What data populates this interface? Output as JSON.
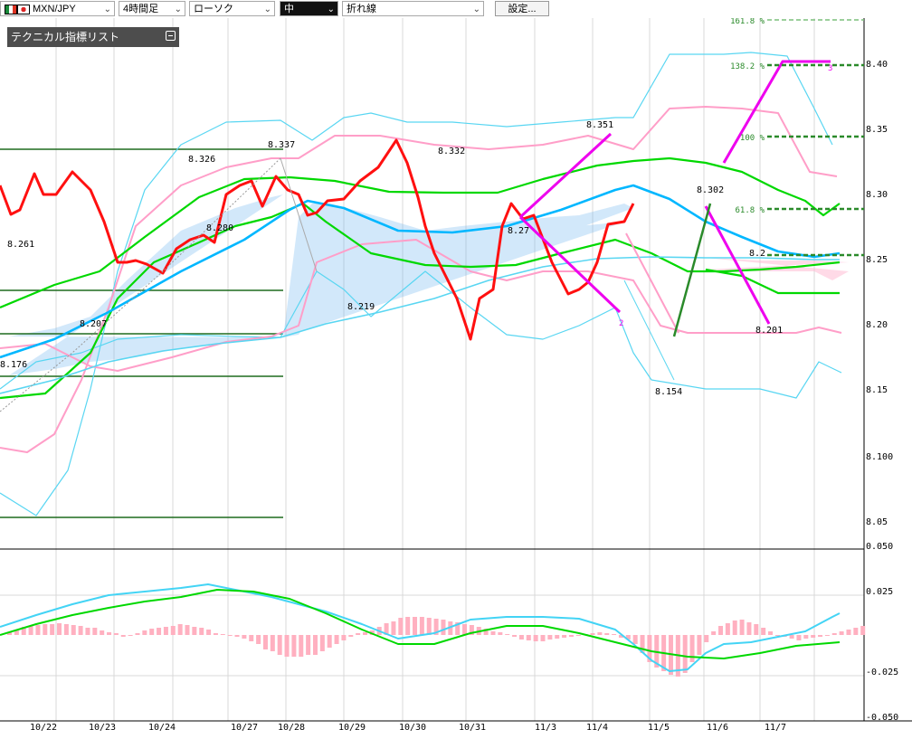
{
  "toolbar": {
    "symbol": "MXN/JPY",
    "period": "4時間足",
    "chart_type": "ローソク",
    "size": "中",
    "line_tool": "折れ線",
    "settings": "設定..."
  },
  "indicator_list": {
    "label": "テクニカル指標リスト"
  },
  "colors": {
    "bullish": "#e53935",
    "bearish": "#1a1aff",
    "ma_short": "#00d800",
    "ma_long": "#00b7ff",
    "bollinger_inner": "#ff9ec8",
    "bollinger_outer": "#59d6f2",
    "rsi_line": "#ff1010",
    "zigzag": "#ee00ee",
    "fibo": "#2a8a2a",
    "grid": "#d8d8d8"
  },
  "chart_data": [
    {
      "type": "candlestick",
      "title": "",
      "yticks": [
        "8.40",
        "8.35",
        "8.30",
        "8.25",
        "8.20",
        "8.15",
        "8.100",
        "8.05"
      ],
      "ylim": [
        8.05,
        8.42
      ],
      "xticks": [
        "10/22",
        "10/23",
        "10/24",
        "10/27",
        "10/28",
        "10/29",
        "10/30",
        "10/31",
        "11/3",
        "11/4",
        "11/5",
        "11/6",
        "11/7"
      ],
      "price_labels": [
        "8.261",
        "8.207",
        "8.176",
        "8.326",
        "8.280",
        "8.337",
        "8.219",
        "8.332",
        "8.27",
        "8.351",
        "8.154",
        "8.302",
        "8.2",
        "8.201"
      ],
      "fibonacci_levels": [
        {
          "label": "161.8",
          "value": 8.435
        },
        {
          "label": "138.2",
          "value": 8.402
        },
        {
          "label": "100",
          "value": 8.347
        },
        {
          "label": "61.8",
          "value": 8.291
        },
        {
          "label": "",
          "value": 8.256
        }
      ],
      "zigzag_labels": [
        "2",
        "3"
      ]
    },
    {
      "type": "histogram+line",
      "title": "",
      "yticks": [
        "0.050",
        "0.025",
        "-0.025",
        "-0.050"
      ],
      "ylim": [
        -0.05,
        0.05
      ]
    }
  ]
}
